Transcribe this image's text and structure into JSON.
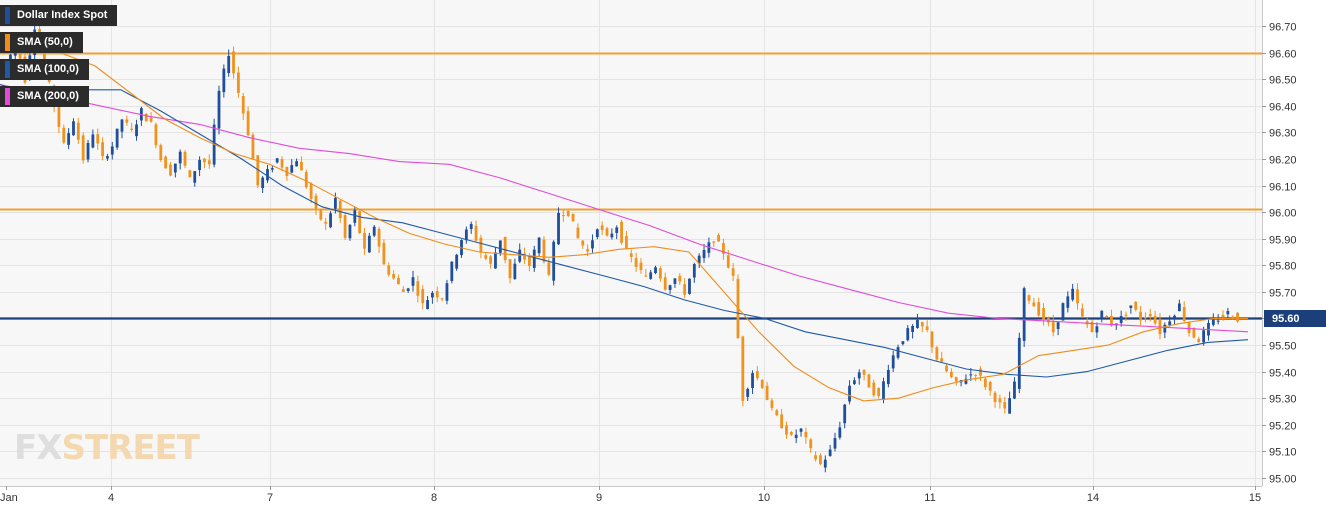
{
  "chart_data": {
    "type": "candlestick",
    "instrument": "Dollar Index Spot",
    "legend": [
      {
        "label": "Dollar Index Spot",
        "color": "#1f4e9a"
      },
      {
        "label": "SMA (50,0)",
        "color": "#f08c1a"
      },
      {
        "label": "SMA (100,0)",
        "color": "#1f5aa8"
      },
      {
        "label": "SMA (200,0)",
        "color": "#e14bd8"
      }
    ],
    "ylim": [
      95.0,
      96.75
    ],
    "y_ticks": [
      "95.00",
      "95.10",
      "95.20",
      "95.30",
      "95.40",
      "95.50",
      "95.60",
      "95.70",
      "95.80",
      "95.90",
      "96.00",
      "96.10",
      "96.20",
      "96.30",
      "96.40",
      "96.50",
      "96.60",
      "96.70"
    ],
    "x_ticks": [
      "Jan",
      "4",
      "7",
      "8",
      "9",
      "10",
      "11",
      "14",
      "15"
    ],
    "horizontal_levels": [
      {
        "value": 96.6,
        "color": "#f0a030"
      },
      {
        "value": 96.01,
        "color": "#f0a030"
      },
      {
        "value": 95.6,
        "color": "#1c3f7a",
        "label": "95.60"
      }
    ],
    "last_price": "95.60",
    "ohlc_path": [
      96.52,
      96.66,
      96.5,
      96.7,
      96.55,
      96.4,
      96.25,
      96.35,
      96.2,
      96.3,
      96.2,
      96.25,
      96.35,
      96.3,
      96.38,
      96.33,
      96.2,
      96.15,
      96.22,
      96.12,
      96.2,
      96.18,
      96.45,
      96.6,
      96.45,
      96.3,
      96.1,
      96.15,
      96.2,
      96.15,
      96.2,
      96.1,
      96.0,
      95.95,
      96.05,
      95.9,
      96.0,
      95.85,
      95.95,
      95.8,
      95.75,
      95.7,
      95.75,
      95.65,
      95.7,
      95.68,
      95.8,
      95.9,
      95.95,
      95.85,
      95.8,
      95.9,
      95.75,
      95.85,
      95.8,
      95.9,
      95.75,
      96.0,
      96.0,
      95.9,
      95.85,
      95.95,
      95.9,
      95.95,
      95.85,
      95.8,
      95.75,
      95.8,
      95.72,
      95.75,
      95.7,
      95.8,
      95.85,
      95.9,
      95.85,
      95.75,
      95.3,
      95.4,
      95.35,
      95.25,
      95.2,
      95.15,
      95.18,
      95.1,
      95.05,
      95.1,
      95.2,
      95.35,
      95.4,
      95.35,
      95.3,
      95.42,
      95.5,
      95.55,
      95.58,
      95.55,
      95.45,
      95.4,
      95.35,
      95.38,
      95.4,
      95.35,
      95.3,
      95.25,
      95.35,
      95.7,
      95.65,
      95.6,
      95.55,
      95.65,
      95.7,
      95.6,
      95.55,
      95.62,
      95.58,
      95.6,
      95.65,
      95.6,
      95.62,
      95.55,
      95.6,
      95.65,
      95.55,
      95.52,
      95.57,
      95.6,
      95.62,
      95.6
    ],
    "sma_50": [
      96.6,
      96.55,
      96.45,
      96.35,
      96.28,
      96.22,
      96.18,
      96.12,
      96.05,
      95.98,
      95.92,
      95.88,
      95.85,
      95.84,
      95.83,
      95.84,
      95.86,
      95.87,
      95.85,
      95.7,
      95.55,
      95.42,
      95.34,
      95.29,
      95.3,
      95.34,
      95.37,
      95.39,
      95.46,
      95.48,
      95.5,
      95.55,
      95.58,
      95.6,
      95.6
    ],
    "sma_100": [
      96.48,
      96.43,
      96.46,
      96.46,
      96.38,
      96.29,
      96.2,
      96.1,
      96.02,
      95.98,
      95.96,
      95.92,
      95.88,
      95.84,
      95.8,
      95.76,
      95.72,
      95.67,
      95.63,
      95.6,
      95.55,
      95.52,
      95.49,
      95.45,
      95.41,
      95.39,
      95.38,
      95.4,
      95.44,
      95.48,
      95.51,
      95.52
    ],
    "sma_200": [
      96.48,
      96.44,
      96.4,
      96.36,
      96.33,
      96.28,
      96.24,
      96.22,
      96.19,
      96.18,
      96.13,
      96.07,
      96.01,
      95.95,
      95.88,
      95.82,
      95.76,
      95.71,
      95.66,
      95.62,
      95.6,
      95.59,
      95.58,
      95.57,
      95.56,
      95.55
    ]
  },
  "watermark": {
    "fx": "FX",
    "street": "STREET"
  }
}
